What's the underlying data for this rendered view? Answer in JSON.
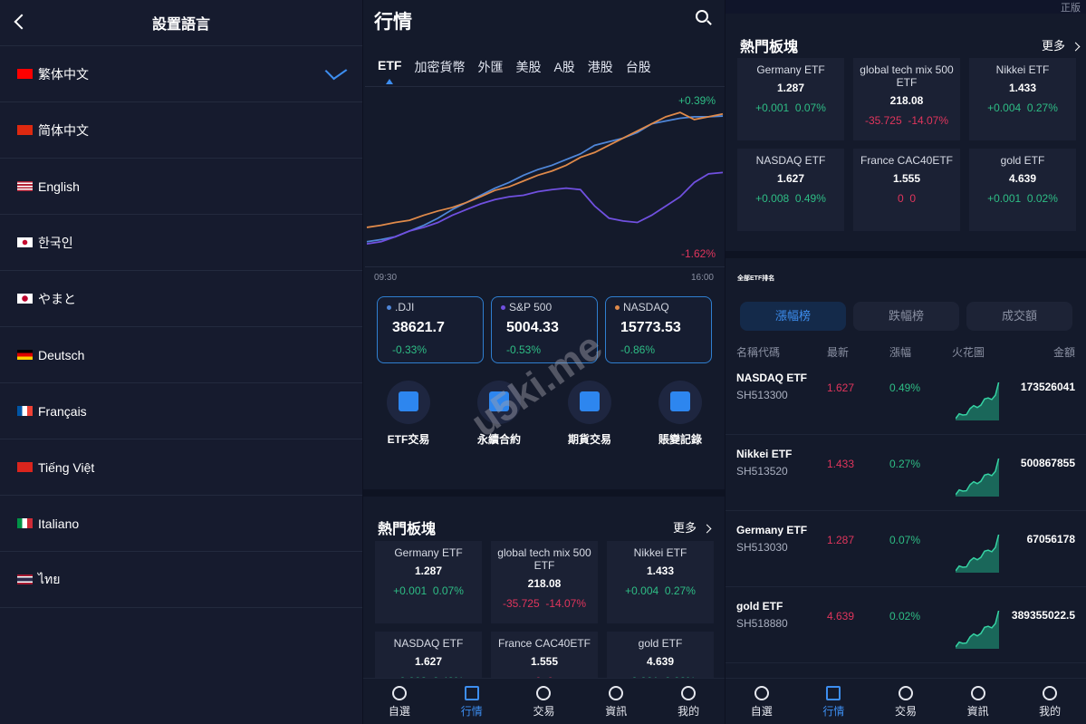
{
  "language": {
    "title": "設置語言",
    "selected": 0,
    "items": [
      {
        "label": "繁体中文",
        "flag": "taiwan-flag-icon"
      },
      {
        "label": "简体中文",
        "flag": "china-flag-icon"
      },
      {
        "label": "English",
        "flag": "us-flag-icon"
      },
      {
        "label": "한국인",
        "flag": "korea-flag-icon"
      },
      {
        "label": "やまと",
        "flag": "japan-flag-icon"
      },
      {
        "label": "Deutsch",
        "flag": "germany-flag-icon"
      },
      {
        "label": "Français",
        "flag": "france-flag-icon"
      },
      {
        "label": "Tiếng Việt",
        "flag": "vietnam-flag-icon"
      },
      {
        "label": "Italiano",
        "flag": "italy-flag-icon"
      },
      {
        "label": "ไทย",
        "flag": "thailand-flag-icon"
      }
    ]
  },
  "market": {
    "title": "行情",
    "tabs": [
      "ETF",
      "加密貨幣",
      "外匯",
      "美股",
      "A股",
      "港股",
      "台股"
    ],
    "active_tab": 0,
    "chart_data": {
      "type": "line",
      "x_start": "09:30",
      "x_end": "16:00",
      "max_label": "+0.39%",
      "min_label": "-1.62%",
      "ylim": [
        -1.62,
        0.39
      ],
      "series": [
        {
          "color": "#4f86d8",
          "values": [
            -1.45,
            -1.42,
            -1.38,
            -1.3,
            -1.22,
            -1.12,
            -1.0,
            -0.9,
            -0.8,
            -0.7,
            -0.62,
            -0.52,
            -0.44,
            -0.38,
            -0.3,
            -0.22,
            -0.1,
            -0.05,
            0.0,
            0.08,
            0.2,
            0.24,
            0.28,
            0.3,
            0.3,
            0.31
          ]
        },
        {
          "color": "#e08a4a",
          "values": [
            -1.25,
            -1.22,
            -1.18,
            -1.15,
            -1.08,
            -1.02,
            -0.97,
            -0.9,
            -0.82,
            -0.73,
            -0.68,
            -0.6,
            -0.52,
            -0.46,
            -0.38,
            -0.27,
            -0.2,
            -0.1,
            0.0,
            0.1,
            0.2,
            0.3,
            0.36,
            0.26,
            0.3,
            0.34
          ]
        },
        {
          "color": "#7050e0",
          "values": [
            -1.48,
            -1.45,
            -1.38,
            -1.3,
            -1.25,
            -1.18,
            -1.08,
            -1.0,
            -0.92,
            -0.86,
            -0.82,
            -0.8,
            -0.75,
            -0.72,
            -0.7,
            -0.72,
            -0.95,
            -1.12,
            -1.16,
            -1.18,
            -1.08,
            -0.95,
            -0.82,
            -0.62,
            -0.5,
            -0.48
          ]
        }
      ]
    },
    "indices": [
      {
        "name": ".DJI",
        "value": "38621.7",
        "change": "-0.33%",
        "dot": "#4f86d8"
      },
      {
        "name": "S&P 500",
        "value": "5004.33",
        "change": "-0.53%",
        "dot": "#7050e0"
      },
      {
        "name": "NASDAQ",
        "value": "15773.53",
        "change": "-0.86%",
        "dot": "#e08a4a"
      }
    ],
    "quick": [
      {
        "label": "ETF交易",
        "icon": "bar-chart-icon"
      },
      {
        "label": "永續合約",
        "icon": "perpetual-contract-icon"
      },
      {
        "label": "期貨交易",
        "icon": "futures-icon"
      },
      {
        "label": "賬變記錄",
        "icon": "account-record-icon"
      }
    ],
    "watermark": "u5ki.me"
  },
  "hot": {
    "title": "熱門板塊",
    "more": "更多",
    "items": [
      {
        "name": "Germany ETF",
        "price": "1.287",
        "chg": "+0.001",
        "pct": "0.07%",
        "up": true
      },
      {
        "name": "global tech mix 500 ETF",
        "price": "218.08",
        "chg": "-35.725",
        "pct": "-14.07%",
        "up": false
      },
      {
        "name": "Nikkei ETF",
        "price": "1.433",
        "chg": "+0.004",
        "pct": "0.27%",
        "up": true
      },
      {
        "name": "NASDAQ ETF",
        "price": "1.627",
        "chg": "+0.008",
        "pct": "0.49%",
        "up": true
      },
      {
        "name": "France CAC40ETF",
        "price": "1.555",
        "chg": "0",
        "pct": "0",
        "up": false
      },
      {
        "name": "gold ETF",
        "price": "4.639",
        "chg": "+0.001",
        "pct": "0.02%",
        "up": true
      }
    ]
  },
  "ranking": {
    "title": "全部ETF排名",
    "tabs": [
      "漲幅榜",
      "跌幅榜",
      "成交額"
    ],
    "active_tab": 0,
    "headers": [
      "名稱代碼",
      "最新",
      "漲幅",
      "火花圖",
      "金額"
    ],
    "rows": [
      {
        "name": "NASDAQ ETF",
        "code": "SH513300",
        "price": "1.627",
        "pct": "0.49%",
        "amount": "173526041"
      },
      {
        "name": "Nikkei ETF",
        "code": "SH513520",
        "price": "1.433",
        "pct": "0.27%",
        "amount": "500867855"
      },
      {
        "name": "Germany ETF",
        "code": "SH513030",
        "price": "1.287",
        "pct": "0.07%",
        "amount": "67056178"
      },
      {
        "name": "gold ETF",
        "code": "SH518880",
        "price": "4.639",
        "pct": "0.02%",
        "amount": "389355022.5"
      }
    ]
  },
  "corner_badge": "正版",
  "nav": {
    "items": [
      "自選",
      "行情",
      "交易",
      "資訊",
      "我的"
    ],
    "active": 1
  },
  "colors": {
    "up": "#2ebd85",
    "down": "#e0355c",
    "accent": "#3d8ef0",
    "background": "#141a2b"
  }
}
